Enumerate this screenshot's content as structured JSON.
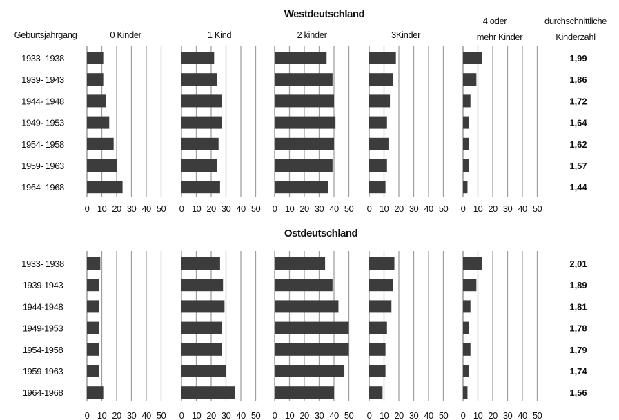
{
  "chart_data": {
    "type": "bar",
    "orientation": "horizontal",
    "row_header": "Geburtsjahrgang",
    "panels": [
      {
        "label": "0 Kinder"
      },
      {
        "label": "1 Kind"
      },
      {
        "label": "2 kinder"
      },
      {
        "label": "3Kinder"
      },
      {
        "label_line1": "4 oder",
        "label_line2": "mehr Kinder"
      }
    ],
    "average_header_line1": "durchschnittliche",
    "average_header_line2": "Kinderzahl",
    "xlim": [
      0,
      50
    ],
    "xticks": [
      "0",
      "10",
      "20",
      "30",
      "40",
      "50"
    ],
    "grid": true,
    "bar_color": "#3c3c3c",
    "gridline_color": "#a0a0a0",
    "sections": [
      {
        "title": "Westdeutschland",
        "categories_display": [
          "1933- 1938",
          "1939- 1943",
          "1944- 1948",
          "1949- 1953",
          "1954- 1958",
          "1959- 1963",
          "1964- 1968"
        ],
        "series": [
          {
            "values": [
              11,
              11,
              13,
              15,
              18,
              20,
              24
            ]
          },
          {
            "values": [
              22,
              24,
              27,
              27,
              25,
              24,
              26
            ]
          },
          {
            "values": [
              35,
              39,
              40,
              41,
              40,
              39,
              36
            ]
          },
          {
            "values": [
              18,
              16,
              14,
              12,
              13,
              12,
              11
            ]
          },
          {
            "values": [
              13,
              9,
              5,
              4,
              4,
              4,
              3
            ]
          }
        ],
        "averages": [
          "1,99",
          "1,86",
          "1,72",
          "1,64",
          "1,62",
          "1,57",
          "1,44"
        ]
      },
      {
        "title": "Ostdeutschland",
        "categories_display": [
          "1933- 1938",
          "1939-1943",
          "1944-1948",
          "1949-1953",
          "1954-1958",
          "1959-1963",
          "1964-1968"
        ],
        "series": [
          {
            "values": [
              9,
              8,
              8,
              8,
              8,
              8,
              11
            ]
          },
          {
            "values": [
              26,
              28,
              29,
              27,
              27,
              30,
              36
            ]
          },
          {
            "values": [
              34,
              39,
              43,
              50,
              50,
              47,
              40
            ]
          },
          {
            "values": [
              17,
              16,
              15,
              12,
              11,
              11,
              9
            ]
          },
          {
            "values": [
              13,
              9,
              5,
              4,
              5,
              4,
              3
            ]
          }
        ],
        "averages": [
          "2,01",
          "1,89",
          "1,81",
          "1,78",
          "1,79",
          "1,74",
          "1,56"
        ]
      }
    ]
  }
}
